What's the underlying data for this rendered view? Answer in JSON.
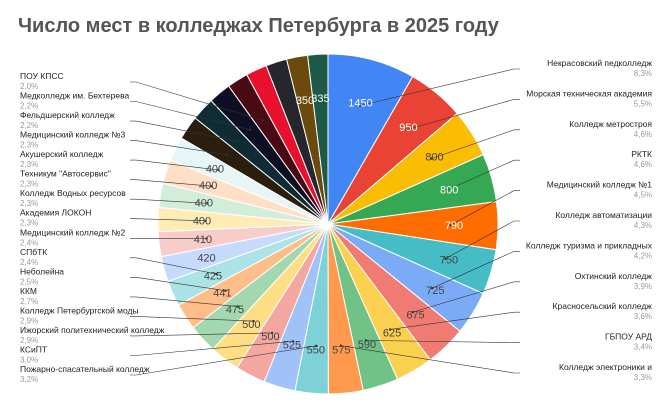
{
  "chart_data": {
    "type": "pie",
    "title": "Число мест в колледжах Петербурга в 2025 году",
    "start_angle_deg": 0,
    "direction": "clockwise",
    "slices": [
      {
        "label": "Некрасовский педколледж",
        "value": 1450,
        "percent": "8,3%",
        "color": "#4285F4"
      },
      {
        "label": "Морская техническая академия",
        "value": 950,
        "percent": "5,5%",
        "color": "#EA4335"
      },
      {
        "label": "Колледж метростроя",
        "value": 800,
        "percent": "4,6%",
        "color": "#FBBC04"
      },
      {
        "label": "РКТК",
        "value": 800,
        "percent": "4,6%",
        "color": "#34A853"
      },
      {
        "label": "Медицинский колледж №1",
        "value": 790,
        "percent": "4,5%",
        "color": "#FF6D01"
      },
      {
        "label": "Колледж автоматизации",
        "value": 750,
        "percent": "4,3%",
        "color": "#46BDC6"
      },
      {
        "label": "Колледж туризма и прикладных",
        "value": 725,
        "percent": "4,2%",
        "color": "#7BAAF7"
      },
      {
        "label": "Охтинский колледж",
        "value": 675,
        "percent": "3,9%",
        "color": "#F07B72"
      },
      {
        "label": "Красносельский колледж",
        "value": 625,
        "percent": "3,6%",
        "color": "#FCD04F"
      },
      {
        "label": "ГБПОУ АРД",
        "value": 590,
        "percent": "3,4%",
        "color": "#71C287"
      },
      {
        "label": "Колледж электроники и",
        "value": 575,
        "percent": "3,3%",
        "color": "#FF994D"
      },
      {
        "label": "Пожарно-спасательный колледж",
        "value": 550,
        "percent": "3,2%",
        "color": "#7ED1D7"
      },
      {
        "label": "КСиПТ",
        "value": 525,
        "percent": "3,0%",
        "color": "#A0C2F9"
      },
      {
        "label": "Ижорский политехнический колледж",
        "value": 500,
        "percent": "2,9%",
        "color": "#F4A7A1"
      },
      {
        "label": "Колледж Петербургской моды",
        "value": 500,
        "percent": "2,9%",
        "color": "#FDDE84"
      },
      {
        "label": "ККМ",
        "value": 475,
        "percent": "2,7%",
        "color": "#A2D7AF"
      },
      {
        "label": "Неболейна",
        "value": 441,
        "percent": "2,5%",
        "color": "#FFBD8A"
      },
      {
        "label": "СПбТК",
        "value": 425,
        "percent": "2,4%",
        "color": "#ACE3E7"
      },
      {
        "label": "",
        "value": 420,
        "percent": "",
        "color": "#C6DAFB"
      },
      {
        "label": "Медицинский колледж №2",
        "value": 410,
        "percent": "2,4%",
        "color": "#F8CCC9"
      },
      {
        "label": "Академия ЛОКОН",
        "value": 400,
        "percent": "2,3%",
        "color": "#FEEBB6"
      },
      {
        "label": "Колледж Водных ресурсов",
        "value": 400,
        "percent": "2,3%",
        "color": "#D2EDD9"
      },
      {
        "label": "Техникум \"Автосервис\"",
        "value": 400,
        "percent": "2,3%",
        "color": "#FFE0C7"
      },
      {
        "label": "Акушерский колледж",
        "value": 400,
        "percent": "2,3%",
        "color": "#E6F6F7"
      },
      {
        "label": "Медицинский колледж №3",
        "value": 400,
        "percent": "2,3%",
        "color": "#2A1E0F"
      },
      {
        "label": "Фельдшерский колледж",
        "value": 385,
        "percent": "2,2%",
        "color": "#0F2B33"
      },
      {
        "label": "Медколледж им. Бехтерева",
        "value": 375,
        "percent": "2,2%",
        "color": "#0E0E24"
      },
      {
        "label": "ПОУ КПСС",
        "value": 350,
        "percent": "2,0%",
        "color": "#4A0A14"
      },
      {
        "label": "",
        "value": 350,
        "percent": "",
        "color": "#E8112D"
      },
      {
        "label": "",
        "value": 350,
        "percent": "",
        "color": "#26272C"
      },
      {
        "label": "",
        "value": 350,
        "percent": "",
        "color": "#6B4A0E"
      },
      {
        "label": "",
        "value": 335,
        "percent": "",
        "color": "#1E5846"
      }
    ],
    "data_labels": [
      "1450",
      "950",
      "800",
      "800",
      "790",
      "750",
      "725",
      "675",
      "625",
      "590",
      "575",
      "550",
      "525",
      "500",
      "500",
      "475",
      "441",
      "425",
      "420",
      "410",
      "400",
      "400",
      "400",
      "400",
      "",
      "",
      "",
      "",
      "",
      "",
      "350",
      "335"
    ]
  },
  "colors": {
    "title": "#555555",
    "label": "#222222",
    "percent": "#9a9a9a",
    "data_label_light": "#ffffff",
    "data_label_dark": "#444444",
    "leader": "#333333"
  }
}
